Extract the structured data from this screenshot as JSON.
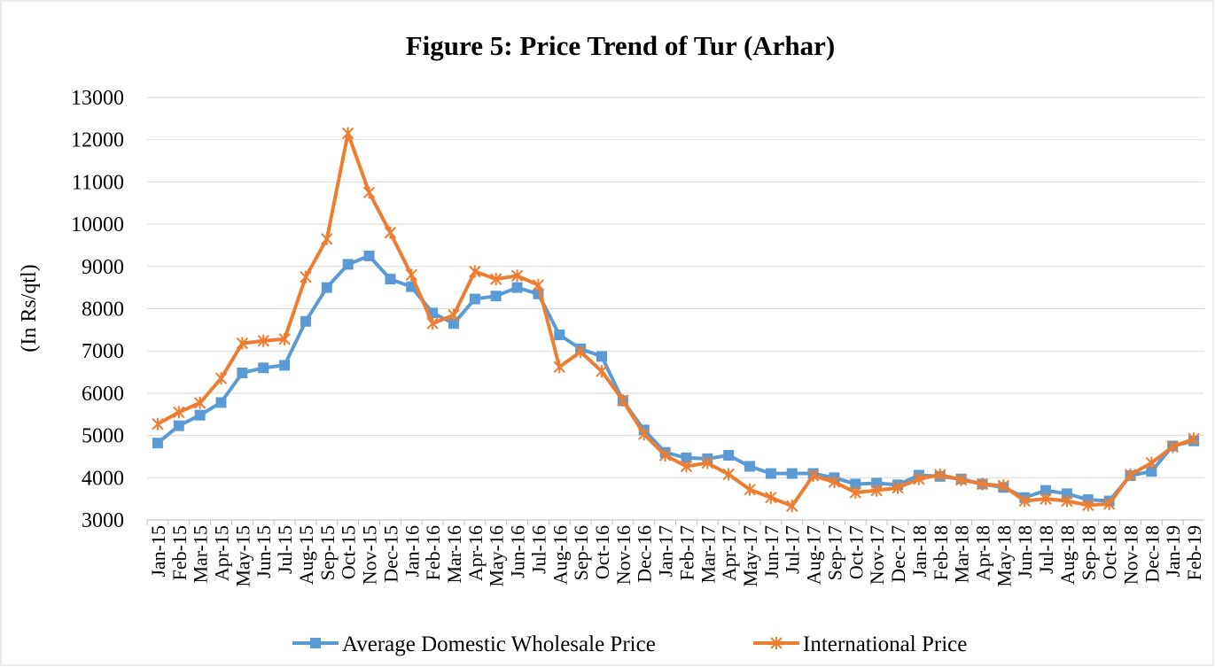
{
  "chart_data": {
    "type": "line",
    "title": "Figure 5: Price Trend of Tur (Arhar)",
    "y_label": "(In Rs/qtl)",
    "categories": [
      "Jan-15",
      "Feb-15",
      "Mar-15",
      "Apr-15",
      "May-15",
      "Jun-15",
      "Jul-15",
      "Aug-15",
      "Sep-15",
      "Oct-15",
      "Nov-15",
      "Dec-15",
      "Jan-16",
      "Feb-16",
      "Mar-16",
      "Apr-16",
      "May-16",
      "Jun-16",
      "Jul-16",
      "Aug-16",
      "Sep-16",
      "Oct-16",
      "Nov-16",
      "Dec-16",
      "Jan-17",
      "Feb-17",
      "Mar-17",
      "Apr-17",
      "May-17",
      "Jun-17",
      "Jul-17",
      "Aug-17",
      "Sep-17",
      "Oct-17",
      "Nov-17",
      "Dec-17",
      "Jan-18",
      "Feb-18",
      "Mar-18",
      "Apr-18",
      "May-18",
      "Jun-18",
      "Jul-18",
      "Aug-18",
      "Sep-18",
      "Oct-18",
      "Nov-18",
      "Dec-18",
      "Jan-19",
      "Feb-19"
    ],
    "series": [
      {
        "name": "Average Domestic Wholesale Price",
        "color": "#5b9bd5",
        "marker": "square",
        "values": [
          4820,
          5230,
          5480,
          5780,
          6480,
          6600,
          6660,
          7700,
          8500,
          9050,
          9250,
          8700,
          8520,
          7900,
          7650,
          8230,
          8300,
          8500,
          8350,
          7380,
          7050,
          6870,
          5820,
          5130,
          4600,
          4470,
          4450,
          4530,
          4270,
          4100,
          4100,
          4100,
          4000,
          3850,
          3870,
          3830,
          4060,
          4030,
          3970,
          3850,
          3770,
          3530,
          3700,
          3620,
          3480,
          3450,
          4050,
          4150,
          4750,
          4870
        ]
      },
      {
        "name": "International Price",
        "color": "#ed7d31",
        "marker": "star",
        "values": [
          5270,
          5550,
          5770,
          6350,
          7180,
          7240,
          7280,
          8750,
          9650,
          12150,
          10750,
          9800,
          8800,
          7650,
          7850,
          8880,
          8700,
          8780,
          8560,
          6620,
          6980,
          6520,
          5830,
          5030,
          4530,
          4270,
          4350,
          4080,
          3720,
          3530,
          3330,
          4050,
          3900,
          3650,
          3700,
          3760,
          3970,
          4070,
          3950,
          3850,
          3810,
          3450,
          3500,
          3450,
          3350,
          3380,
          4070,
          4350,
          4730,
          4920
        ]
      }
    ],
    "ylim": [
      3000,
      13000
    ],
    "yticks": [
      3000,
      4000,
      5000,
      6000,
      7000,
      8000,
      9000,
      10000,
      11000,
      12000,
      13000
    ],
    "grid": true,
    "legend": "bottom"
  }
}
